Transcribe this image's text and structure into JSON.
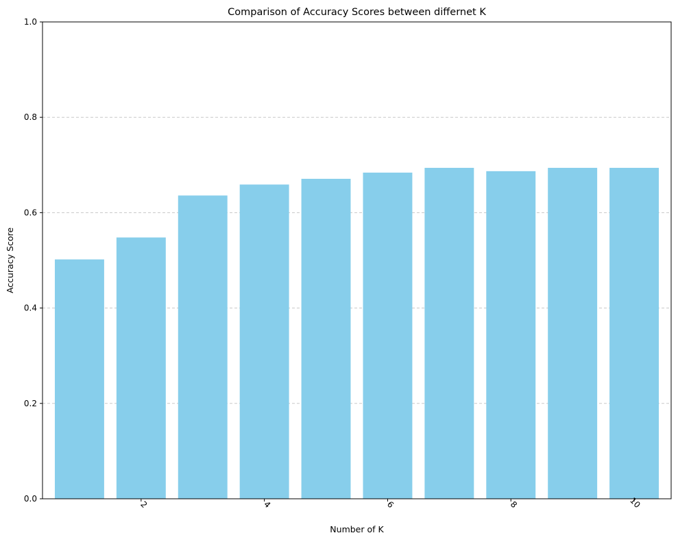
{
  "chart_data": {
    "type": "bar",
    "title": "Comparison of Accuracy Scores between differnet K",
    "xlabel": "Number of K",
    "ylabel": "Accuracy Score",
    "x": [
      1,
      2,
      3,
      4,
      5,
      6,
      7,
      8,
      9,
      10
    ],
    "values": [
      0.502,
      0.548,
      0.636,
      0.659,
      0.671,
      0.684,
      0.694,
      0.687,
      0.694,
      0.694
    ],
    "ylim": [
      0,
      1.0
    ],
    "xlim": [
      0.4,
      10.6
    ],
    "x_ticks": [
      2,
      4,
      6,
      8,
      10
    ],
    "x_tick_labels": [
      "2",
      "4",
      "6",
      "8",
      "10"
    ],
    "x_tick_rotation": 45,
    "y_ticks": [
      0.0,
      0.2,
      0.4,
      0.6,
      0.8,
      1.0
    ],
    "y_tick_labels": [
      "0.0",
      "0.2",
      "0.4",
      "0.6",
      "0.8",
      "1.0"
    ],
    "bar_color": "#87CEEB",
    "grid": "y-axis, dashed",
    "grid_color": "#c8c8c8",
    "legend": "none"
  }
}
